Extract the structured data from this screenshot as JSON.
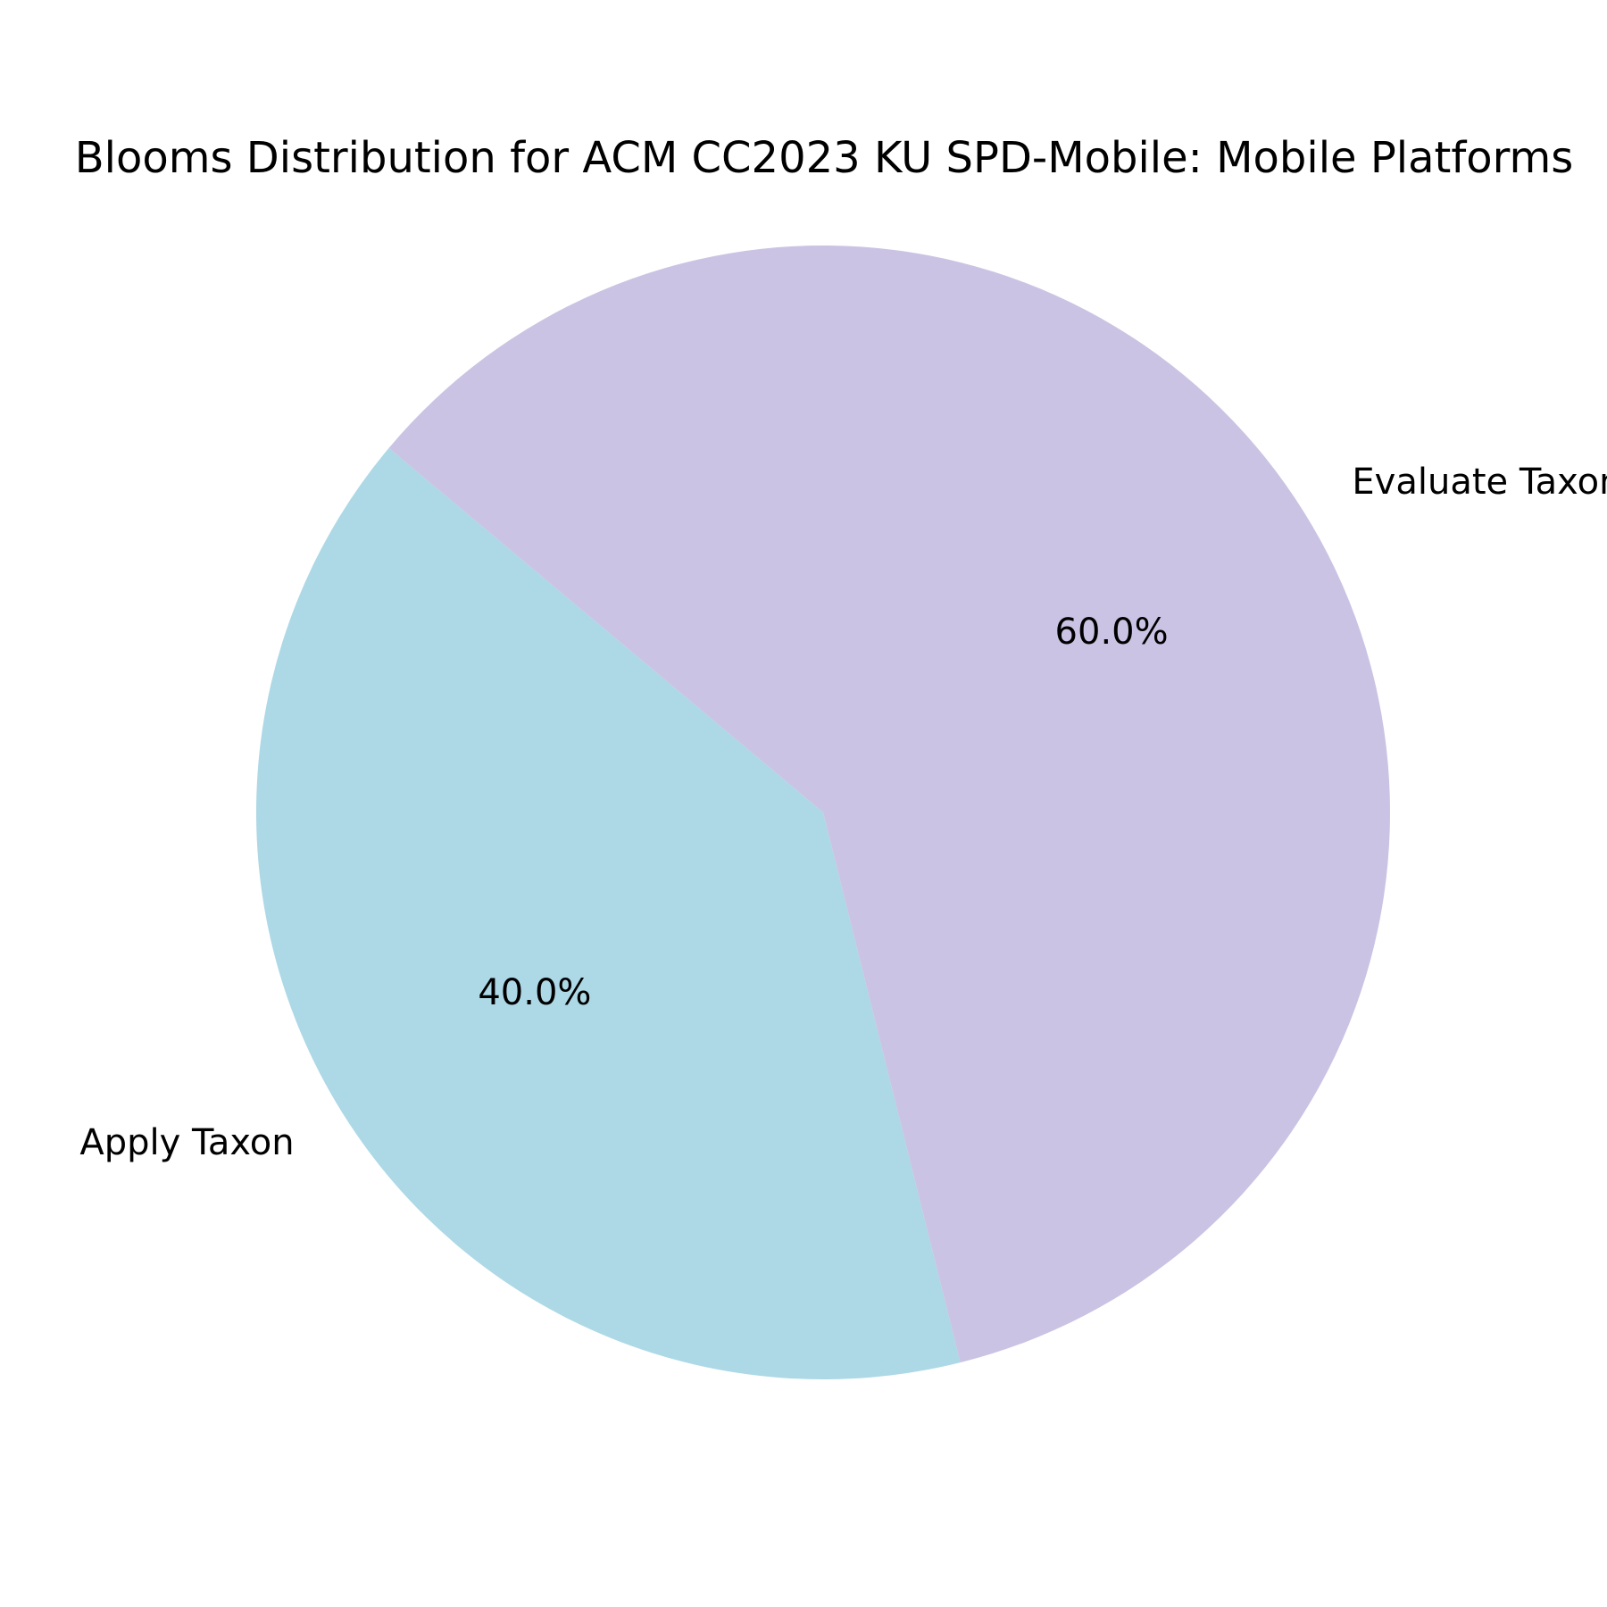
{
  "chart_data": {
    "type": "pie",
    "title": "Blooms Distribution for ACM CC2023 KU SPD-Mobile: Mobile Platforms",
    "slices": [
      {
        "label": "Apply Taxon",
        "value": 40.0,
        "pct_label": "40.0%",
        "color": "#add8e6"
      },
      {
        "label": "Evaluate Taxon",
        "value": 60.0,
        "pct_label": "60.0%",
        "color": "#cbc3e3"
      }
    ],
    "legend": "none"
  }
}
